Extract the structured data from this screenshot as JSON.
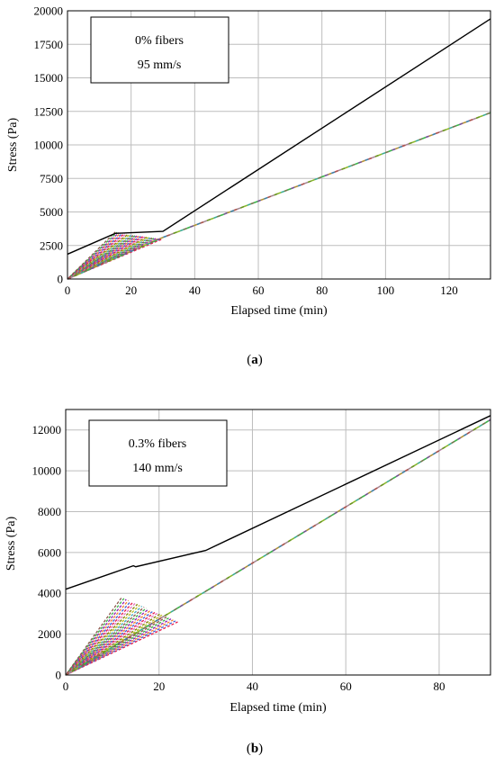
{
  "chart_data": [
    {
      "type": "line",
      "panel_label": "a",
      "xlabel": "Elapsed time (min)",
      "ylabel": "Stress (Pa)",
      "xlim": [
        0,
        133
      ],
      "ylim": [
        0,
        20000
      ],
      "xticks": [
        0,
        20,
        40,
        60,
        80,
        100,
        120
      ],
      "yticks": [
        0,
        2500,
        5000,
        7500,
        10000,
        12500,
        15000,
        17500,
        20000
      ],
      "grid": true,
      "annotation_lines": [
        "0% fibers",
        "95 mm/s"
      ],
      "series": [
        {
          "color": "#000000",
          "x": [
            0,
            15,
            30,
            133
          ],
          "y": [
            1850,
            3400,
            3550,
            19400
          ]
        },
        {
          "color": "#3cb44b",
          "x": [
            0,
            30,
            133
          ],
          "y": [
            0,
            3100,
            12400
          ]
        }
      ],
      "band": {
        "colors": [
          "#e6194b",
          "#4363d8",
          "#f58231",
          "#911eb4",
          "#3cb44b",
          "#8c564b",
          "#46aabf",
          "#bcbd22",
          "#808000",
          "#e377c2"
        ],
        "x_end_range": [
          15,
          30
        ],
        "y_at_30": [
          3000,
          3500
        ]
      }
    },
    {
      "type": "line",
      "panel_label": "b",
      "xlabel": "Elapsed time (min)",
      "ylabel": "Stress (Pa)",
      "xlim": [
        0,
        91
      ],
      "ylim": [
        0,
        13000
      ],
      "xticks": [
        0,
        20,
        40,
        60,
        80
      ],
      "yticks": [
        0,
        2000,
        4000,
        6000,
        8000,
        10000,
        12000
      ],
      "grid": true,
      "annotation_lines": [
        "0.3% fibers",
        "140 mm/s"
      ],
      "series": [
        {
          "color": "#000000",
          "x": [
            0,
            14.5,
            15,
            30,
            91
          ],
          "y": [
            4200,
            5350,
            5300,
            6100,
            12700
          ]
        },
        {
          "color": "#3cb44b",
          "x": [
            0,
            30,
            91
          ],
          "y": [
            0,
            4100,
            12500
          ]
        }
      ],
      "band": {
        "colors": [
          "#e6194b",
          "#4363d8",
          "#f58231",
          "#911eb4",
          "#3cb44b",
          "#8c564b",
          "#46aabf",
          "#bcbd22",
          "#808000",
          "#e377c2"
        ],
        "x_end_range": [
          12,
          24
        ],
        "y_at_end": [
          2600,
          3800
        ]
      }
    }
  ]
}
